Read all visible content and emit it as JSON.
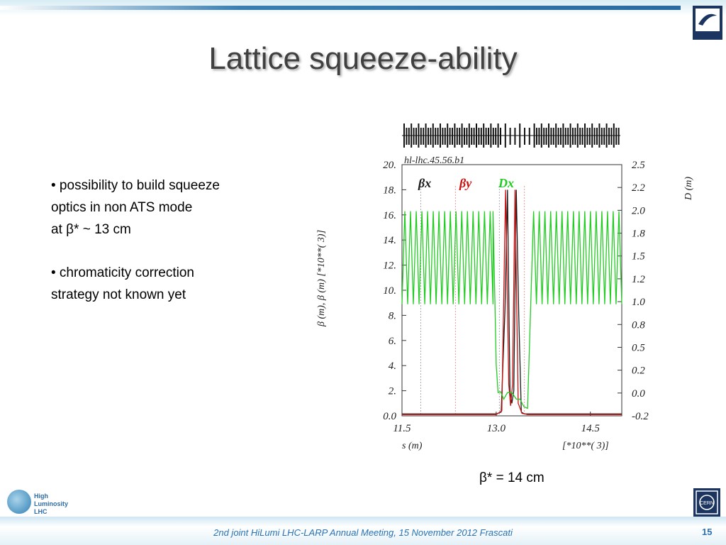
{
  "slide": {
    "title": "Lattice squeeze-ability",
    "bullets": [
      [
        "•  possibility to build  squeeze",
        "   optics  in non ATS mode",
        "   at β* ~ 13 cm"
      ],
      [
        "• chromaticity correction",
        "  strategy not known yet"
      ]
    ],
    "caption": "β* = 14 cm",
    "footer": "2nd joint HiLumi LHC-LARP Annual Meeting, 15 November 2012 Frascati",
    "page_number": "15",
    "logo_text": [
      "High",
      "Luminosity",
      "LHC"
    ],
    "cern_logo_text": "CERN"
  },
  "colors": {
    "title": "#404040",
    "footer_text": "#2a72b5",
    "beta_x": "#1a1a1a",
    "beta_y": "#cc1010",
    "dispersion": "#22cc22"
  },
  "chart_data": {
    "type": "line",
    "title": "hl-lhc.45.56.b1",
    "xlabel": "s (m)",
    "xscale_label": "[*10**( 3)]",
    "ylabel_left": "β (m), β (m)    [*10**( 3)]",
    "ylabel_right": "D (m)",
    "xlim": [
      11.5,
      15.0
    ],
    "ylim_left": [
      0.0,
      20.0
    ],
    "ylim_right": [
      -0.2,
      2.5
    ],
    "x_ticks": [
      "11.5",
      "13.0",
      "14.5"
    ],
    "y_ticks_left": [
      "0.0",
      "2.",
      "4.",
      "6.",
      "8.",
      "10.",
      "12.",
      "14.",
      "16.",
      "18.",
      "20."
    ],
    "y_ticks_right": [
      "-0.2",
      "0.0",
      "0.2",
      "0.5",
      "0.8",
      "1.0",
      "1.2",
      "1.5",
      "1.8",
      "2.0",
      "2.2",
      "2.5"
    ],
    "legend": [
      "βx",
      "βy",
      "Dx"
    ],
    "series": [
      {
        "name": "βx",
        "color": "#1a1a1a",
        "x": [
          11.5,
          13.0,
          13.08,
          13.14,
          13.18,
          13.22,
          13.25,
          13.28,
          13.32,
          13.36,
          13.4,
          13.45,
          13.5,
          15.0
        ],
        "y": [
          0.15,
          0.15,
          0.3,
          8.5,
          18.0,
          2.0,
          1.0,
          2.0,
          18.0,
          8.0,
          0.3,
          0.15,
          0.15,
          0.15
        ]
      },
      {
        "name": "βy",
        "color": "#cc1010",
        "x": [
          11.5,
          13.0,
          13.09,
          13.15,
          13.2,
          13.23,
          13.26,
          13.3,
          13.35,
          13.41,
          13.5,
          15.0
        ],
        "y": [
          0.1,
          0.1,
          0.4,
          18.0,
          2.5,
          0.8,
          2.5,
          18.0,
          1.0,
          0.2,
          0.1,
          0.1
        ]
      },
      {
        "name": "Dx",
        "color": "#22cc22",
        "periodic_left": {
          "x_from": 11.5,
          "x_to": 12.95,
          "period": 0.0906,
          "low": 1.0,
          "high": 2.0
        },
        "x": [
          12.95,
          13.0,
          13.03,
          13.07,
          13.12,
          13.18,
          13.25,
          13.32,
          13.38,
          13.44,
          13.5,
          13.55
        ],
        "y": [
          2.0,
          0.35,
          0.05,
          0.06,
          -0.02,
          0.05,
          0.05,
          -0.02,
          -0.02,
          -0.1,
          -0.12,
          1.0
        ],
        "periodic_right": {
          "x_from": 13.55,
          "x_to": 15.0,
          "period": 0.0906,
          "low": 1.0,
          "high": 2.0
        }
      }
    ],
    "markers_x": [
      11.8,
      12.35,
      13.05,
      13.45
    ],
    "lattice_strip": true,
    "grid": false
  }
}
